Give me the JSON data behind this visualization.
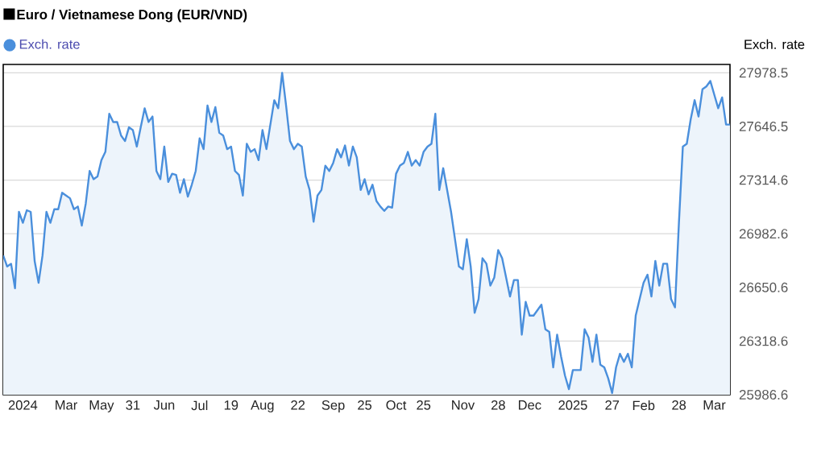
{
  "chart_data": {
    "type": "area",
    "title": "Euro / Vietnamese Dong (EUR/VND)",
    "ylabel": "Exch. rate",
    "categories": [
      null,
      null,
      null,
      null,
      null,
      "2024",
      null,
      null,
      null,
      null,
      null,
      null,
      null,
      null,
      null,
      null,
      "Mar",
      null,
      null,
      null,
      null,
      null,
      null,
      null,
      null,
      "May",
      null,
      null,
      null,
      null,
      null,
      null,
      null,
      "31",
      null,
      null,
      null,
      null,
      null,
      null,
      null,
      "Jun",
      null,
      null,
      null,
      null,
      null,
      null,
      null,
      null,
      "Jul",
      null,
      null,
      null,
      null,
      null,
      null,
      null,
      "19",
      null,
      null,
      null,
      null,
      null,
      null,
      null,
      "Aug",
      null,
      null,
      null,
      null,
      null,
      null,
      null,
      null,
      "22",
      null,
      null,
      null,
      null,
      null,
      null,
      null,
      null,
      "Sep",
      null,
      null,
      null,
      null,
      null,
      null,
      null,
      "25",
      null,
      null,
      null,
      null,
      null,
      null,
      null,
      "Oct",
      null,
      null,
      null,
      null,
      null,
      null,
      "25",
      null,
      null,
      null,
      null,
      null,
      null,
      null,
      null,
      null,
      "Nov",
      null,
      null,
      null,
      null,
      null,
      null,
      null,
      null,
      "28",
      null,
      null,
      null,
      null,
      null,
      null,
      null,
      "Dec",
      null,
      null,
      null,
      null,
      null,
      null,
      null,
      null,
      null,
      null,
      "2025",
      null,
      null,
      null,
      null,
      null,
      null,
      null,
      null,
      null,
      "27",
      null,
      null,
      null,
      null,
      null,
      null,
      null,
      "Feb",
      null,
      null,
      null,
      null,
      null,
      null,
      null,
      null,
      "28",
      null,
      null,
      null,
      null,
      null,
      null,
      null,
      null,
      "Mar",
      null,
      null,
      null,
      null
    ],
    "series": [
      {
        "name": "Exch. rate",
        "color": "#4a8fdc",
        "values": [
          26848,
          26780,
          26797,
          26645,
          27118,
          27050,
          27128,
          27118,
          26814,
          26679,
          26848,
          27118,
          27050,
          27134,
          27134,
          27236,
          27219,
          27202,
          27134,
          27151,
          27033,
          27168,
          27371,
          27320,
          27337,
          27438,
          27489,
          27725,
          27674,
          27674,
          27590,
          27556,
          27641,
          27624,
          27522,
          27641,
          27759,
          27674,
          27708,
          27371,
          27320,
          27522,
          27303,
          27354,
          27347,
          27236,
          27320,
          27212,
          27286,
          27371,
          27573,
          27506,
          27776,
          27674,
          27766,
          27607,
          27590,
          27506,
          27522,
          27371,
          27347,
          27219,
          27539,
          27489,
          27506,
          27438,
          27624,
          27506,
          27658,
          27809,
          27759,
          27978,
          27776,
          27556,
          27506,
          27539,
          27522,
          27337,
          27253,
          27057,
          27219,
          27253,
          27404,
          27371,
          27421,
          27506,
          27455,
          27529,
          27404,
          27522,
          27455,
          27253,
          27320,
          27226,
          27286,
          27185,
          27151,
          27124,
          27151,
          27144,
          27354,
          27404,
          27421,
          27489,
          27404,
          27438,
          27404,
          27489,
          27522,
          27539,
          27725,
          27253,
          27388,
          27253,
          27118,
          26949,
          26780,
          26763,
          26949,
          26780,
          26493,
          26578,
          26831,
          26797,
          26662,
          26712,
          26881,
          26831,
          26713,
          26594,
          26696,
          26696,
          26358,
          26561,
          26476,
          26476,
          26510,
          26544,
          26392,
          26375,
          26156,
          26358,
          26223,
          26105,
          26021,
          26139,
          26139,
          26139,
          26392,
          26341,
          26190,
          26358,
          26172,
          26156,
          26088,
          25997,
          26156,
          26240,
          26190,
          26240,
          26156,
          26476,
          26578,
          26679,
          26729,
          26594,
          26814,
          26662,
          26797,
          26797,
          26578,
          26527,
          27050,
          27522,
          27539,
          27691,
          27809,
          27708,
          27877,
          27894,
          27928,
          27843,
          27759,
          27826,
          27658,
          27658
        ]
      }
    ],
    "ylim": [
      25986.6,
      28030
    ],
    "yticks": [
      25986.6,
      26318.6,
      26650.6,
      26982.6,
      27314.6,
      27646.5,
      27978.5
    ],
    "grid": "y",
    "legend": "top left"
  }
}
